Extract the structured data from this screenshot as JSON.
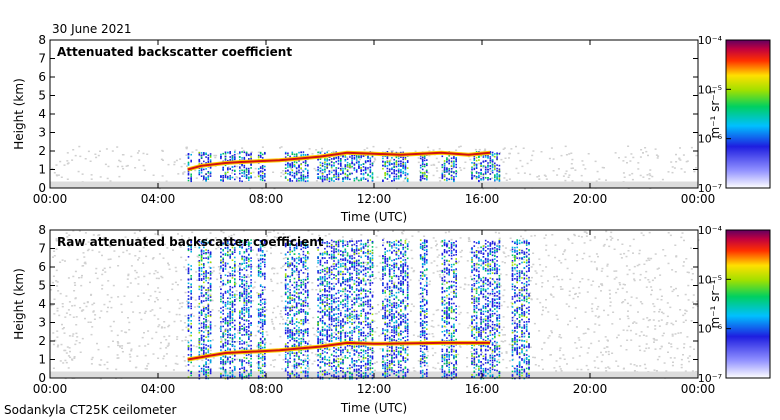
{
  "date_label": "30 June 2021",
  "instrument_label": "Sodankyla CT25K ceilometer",
  "colorbar_unit": "m⁻¹ sr⁻¹",
  "chart_data": [
    {
      "type": "heatmap",
      "title": "Attenuated backscatter coefficient",
      "xlabel": "Time (UTC)",
      "ylabel": "Height (km)",
      "xlim": [
        0,
        24
      ],
      "ylim": [
        0,
        8
      ],
      "xticks": [
        "00:00",
        "04:00",
        "08:00",
        "12:00",
        "16:00",
        "20:00",
        "00:00"
      ],
      "yticks": [
        "0",
        "1",
        "2",
        "3",
        "4",
        "5",
        "6",
        "7",
        "8"
      ],
      "colorbar": {
        "scale": "log",
        "range": [
          1e-07,
          0.0001
        ],
        "ticks": [
          "10⁻⁷",
          "10⁻⁶",
          "10⁻⁵",
          "10⁻⁴"
        ]
      },
      "cloud_base_km": [
        [
          5.1,
          1.0
        ],
        [
          5.6,
          1.2
        ],
        [
          6.5,
          1.35
        ],
        [
          7.0,
          1.4
        ],
        [
          8.5,
          1.5
        ],
        [
          9.3,
          1.6
        ],
        [
          10.0,
          1.7
        ],
        [
          11.0,
          1.9
        ],
        [
          12.0,
          1.85
        ],
        [
          13.0,
          1.8
        ],
        [
          14.5,
          1.9
        ],
        [
          15.5,
          1.8
        ],
        [
          16.3,
          1.9
        ]
      ],
      "cloud_occurrence_hours": [
        [
          5.1,
          5.3
        ],
        [
          5.5,
          6.0
        ],
        [
          6.3,
          6.9
        ],
        [
          7.0,
          7.5
        ],
        [
          7.7,
          8.0
        ],
        [
          8.7,
          9.6
        ],
        [
          9.9,
          12.0
        ],
        [
          12.3,
          13.3
        ],
        [
          13.7,
          14.0
        ],
        [
          14.5,
          15.1
        ],
        [
          15.6,
          16.7
        ]
      ]
    },
    {
      "type": "heatmap",
      "title": "Raw attenuated backscatter coefficient",
      "xlabel": "Time (UTC)",
      "ylabel": "Height (km)",
      "xlim": [
        0,
        24
      ],
      "ylim": [
        0,
        8
      ],
      "xticks": [
        "00:00",
        "04:00",
        "08:00",
        "12:00",
        "16:00",
        "20:00",
        "00:00"
      ],
      "yticks": [
        "0",
        "1",
        "2",
        "3",
        "4",
        "5",
        "6",
        "7",
        "8"
      ],
      "colorbar": {
        "scale": "log",
        "range": [
          1e-07,
          0.0001
        ],
        "ticks": [
          "10⁻⁷",
          "10⁻⁶",
          "10⁻⁵",
          "10⁻⁴"
        ]
      },
      "cloud_base_km": [
        [
          5.1,
          1.0
        ],
        [
          6.5,
          1.35
        ],
        [
          8.5,
          1.5
        ],
        [
          10.0,
          1.7
        ],
        [
          11.0,
          1.9
        ],
        [
          12.0,
          1.85
        ],
        [
          14.5,
          1.9
        ],
        [
          16.3,
          1.9
        ]
      ],
      "cloud_occurrence_hours": [
        [
          5.1,
          5.3
        ],
        [
          5.5,
          6.0
        ],
        [
          6.3,
          6.9
        ],
        [
          7.0,
          7.5
        ],
        [
          7.7,
          8.0
        ],
        [
          8.7,
          9.6
        ],
        [
          9.9,
          12.0
        ],
        [
          12.3,
          13.3
        ],
        [
          13.7,
          14.0
        ],
        [
          14.5,
          15.1
        ],
        [
          15.6,
          16.7
        ],
        [
          17.1,
          17.8
        ]
      ]
    }
  ]
}
